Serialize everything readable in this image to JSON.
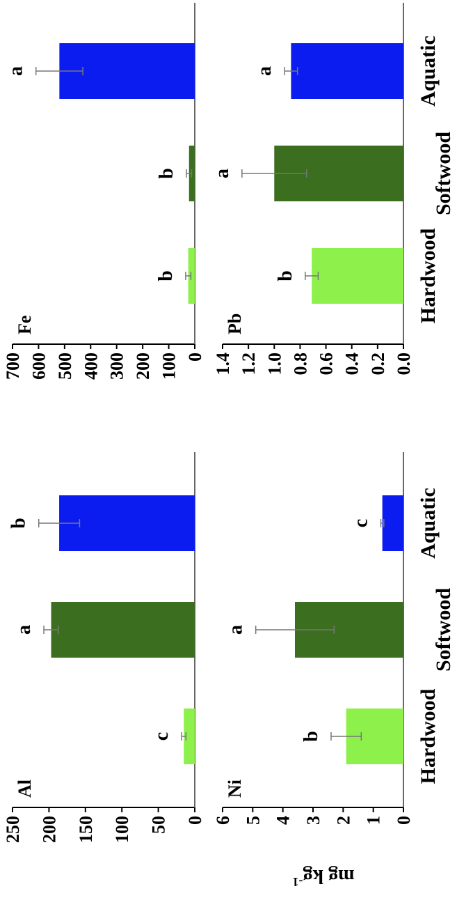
{
  "figure": {
    "y_axis_label": "mg kg",
    "y_axis_label_exponent": "-1",
    "x_tick_labels": [
      "Hardwood",
      "Softwood",
      "Aquatic"
    ]
  },
  "colors": {
    "Hardwood": "#8ef04a",
    "Softwood": "#3b6e1f",
    "Aquatic": "#0a1cf0"
  },
  "chart_data": [
    {
      "type": "bar",
      "panel": "Al",
      "title": "Al",
      "categories": [
        "Hardwood",
        "Softwood",
        "Aquatic"
      ],
      "values": [
        15,
        197,
        186
      ],
      "errors": [
        3,
        10,
        28
      ],
      "letters": [
        "c",
        "a",
        "b"
      ],
      "ylim": [
        0,
        250
      ],
      "yticks": [
        0,
        50,
        100,
        150,
        200,
        250
      ],
      "ytick_labels": [
        "0",
        "50",
        "100",
        "150",
        "200",
        "250"
      ],
      "ylabel": "mg kg-1"
    },
    {
      "type": "bar",
      "panel": "Fe",
      "title": "Fe",
      "categories": [
        "Hardwood",
        "Softwood",
        "Aquatic"
      ],
      "values": [
        25,
        22,
        520
      ],
      "errors": [
        10,
        10,
        90
      ],
      "letters": [
        "b",
        "b",
        "a"
      ],
      "ylim": [
        0,
        700
      ],
      "yticks": [
        0,
        100,
        200,
        300,
        400,
        500,
        600,
        700
      ],
      "ytick_labels": [
        "0",
        "100",
        "200",
        "300",
        "400",
        "500",
        "600",
        "700"
      ],
      "ylabel": ""
    },
    {
      "type": "bar",
      "panel": "Ni",
      "title": "Ni",
      "categories": [
        "Hardwood",
        "Softwood",
        "Aquatic"
      ],
      "values": [
        1.9,
        3.6,
        0.7
      ],
      "errors": [
        0.5,
        1.3,
        0.05
      ],
      "letters": [
        "b",
        "a",
        "c"
      ],
      "ylim": [
        0,
        6
      ],
      "yticks": [
        0,
        1,
        2,
        3,
        4,
        5,
        6
      ],
      "ytick_labels": [
        "0",
        "1",
        "2",
        "3",
        "4",
        "5",
        "6"
      ],
      "ylabel": "mg kg-1"
    },
    {
      "type": "bar",
      "panel": "Pb",
      "title": "Pb",
      "categories": [
        "Hardwood",
        "Softwood",
        "Aquatic"
      ],
      "values": [
        0.71,
        1.0,
        0.87
      ],
      "errors": [
        0.05,
        0.25,
        0.05
      ],
      "letters": [
        "b",
        "a",
        "a"
      ],
      "ylim": [
        0,
        1.4
      ],
      "yticks": [
        0,
        0.2,
        0.4,
        0.6,
        0.8,
        1.0,
        1.2,
        1.4
      ],
      "ytick_labels": [
        "0.0",
        "0.2",
        "0.4",
        "0.6",
        "0.8",
        "1.0",
        "1.2",
        "1.4"
      ],
      "ylabel": ""
    }
  ]
}
